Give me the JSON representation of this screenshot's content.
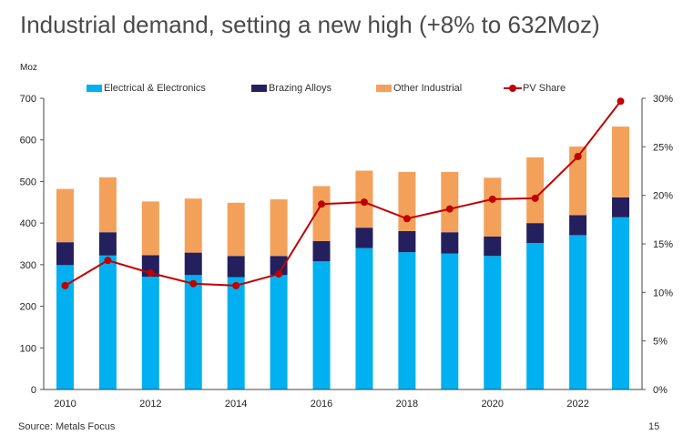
{
  "title": "Industrial demand, setting a new high (+8% to 632Moz)",
  "unit_label": "Moz",
  "source": "Source: Metals Focus",
  "page_number": "15",
  "colors": {
    "electrical": "#00b0f0",
    "brazing": "#24205e",
    "other": "#f3a15a",
    "pv": "#c00000"
  },
  "legend": {
    "electrical": "Electrical & Electronics",
    "brazing": "Brazing Alloys",
    "other": "Other Industrial",
    "pv": "PV Share"
  },
  "chart_data": {
    "type": "bar",
    "stacked": true,
    "categories": [
      "2010",
      "2011",
      "2012",
      "2013",
      "2014",
      "2015",
      "2016",
      "2017",
      "2018",
      "2019",
      "2020",
      "2021",
      "2022",
      "2023"
    ],
    "x_tick_labels": [
      "2010",
      "2012",
      "2014",
      "2016",
      "2018",
      "2020",
      "2022"
    ],
    "series": [
      {
        "name": "Electrical & Electronics",
        "values": [
          299,
          322,
          271,
          275,
          270,
          275,
          308,
          340,
          330,
          327,
          321,
          352,
          371,
          414
        ]
      },
      {
        "name": "Brazing Alloys",
        "values": [
          55,
          56,
          52,
          54,
          51,
          46,
          49,
          49,
          51,
          51,
          47,
          48,
          48,
          48
        ]
      },
      {
        "name": "Other Industrial",
        "values": [
          128,
          132,
          129,
          130,
          128,
          136,
          132,
          137,
          142,
          145,
          141,
          158,
          165,
          170
        ]
      }
    ],
    "line_series": {
      "name": "PV Share",
      "axis": "right",
      "values": [
        10.7,
        13.3,
        12.0,
        10.9,
        10.7,
        11.9,
        19.1,
        19.3,
        17.6,
        18.6,
        19.6,
        19.7,
        24.0,
        29.7
      ]
    },
    "y_left": {
      "label": "Moz",
      "lim": [
        0,
        700
      ],
      "ticks": [
        0,
        100,
        200,
        300,
        400,
        500,
        600,
        700
      ]
    },
    "y_right": {
      "lim": [
        0,
        30
      ],
      "ticks": [
        "0%",
        "5%",
        "10%",
        "15%",
        "20%",
        "25%",
        "30%"
      ]
    },
    "legend_position": "top",
    "grid": false
  }
}
